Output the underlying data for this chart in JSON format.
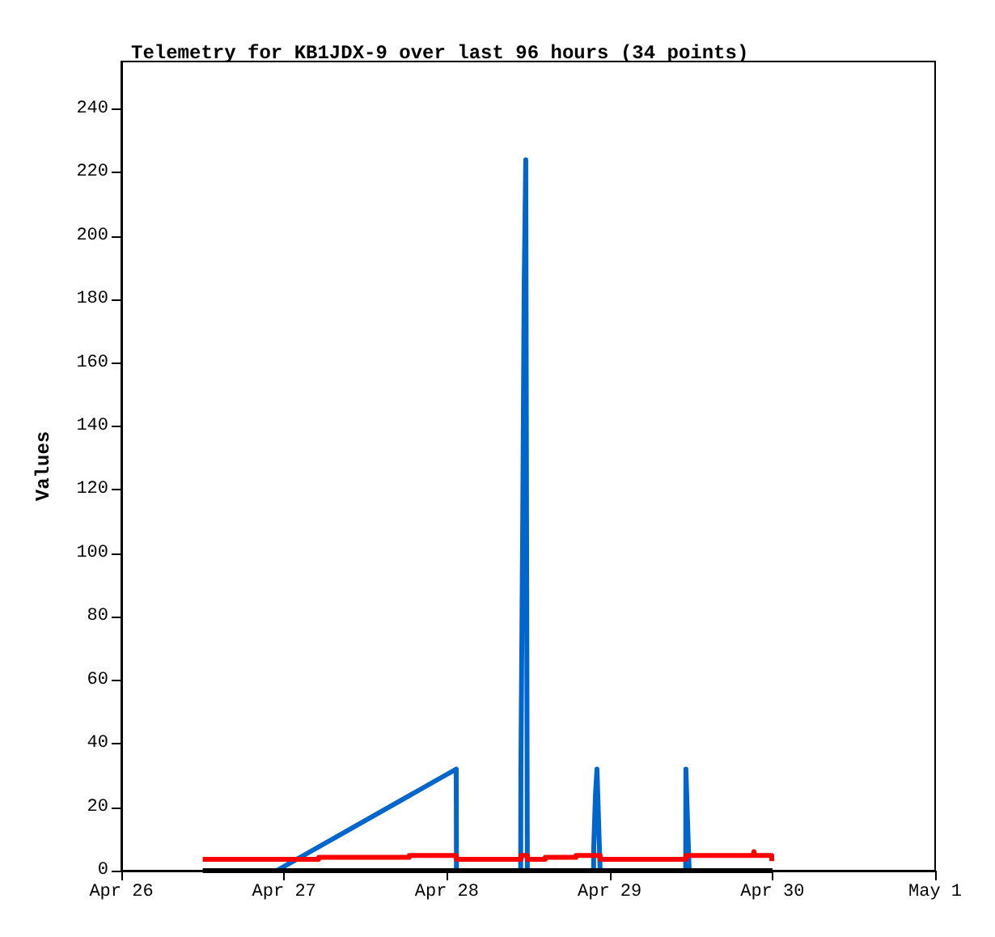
{
  "chart_data": {
    "type": "line",
    "title": "Telemetry for KB1JDX-9 over last 96 hours (34 points)",
    "ylabel": "Values",
    "xlim": [
      "--04-26",
      "--05-01"
    ],
    "xticks": [
      {
        "value": "--04-26",
        "label": "Apr 26"
      },
      {
        "value": "--04-27",
        "label": "Apr 27"
      },
      {
        "value": "--04-28",
        "label": "Apr 28"
      },
      {
        "value": "--04-29",
        "label": "Apr 29"
      },
      {
        "value": "--04-30",
        "label": "Apr 30"
      },
      {
        "value": "--05-01",
        "label": "May 1"
      }
    ],
    "ylim": [
      0,
      255
    ],
    "yticks": [
      0,
      20,
      40,
      60,
      80,
      100,
      120,
      140,
      160,
      180,
      200,
      220,
      240
    ],
    "grid": false,
    "marker": "none",
    "line_style": "solid",
    "series": [
      {
        "color": "#000000",
        "x": [
          "--04-26T12:00",
          "--04-30T00:00"
        ],
        "values": [
          0,
          0
        ]
      },
      {
        "color": "#ff0000",
        "x": [
          "--04-26T12:00",
          "--04-27T05:06",
          "--04-27T05:07",
          "--04-27T18:27",
          "--04-27T18:28",
          "--04-28T01:23",
          "--04-28T01:24",
          "--04-28T10:55",
          "--04-28T10:56",
          "--04-28T11:52",
          "--04-28T11:53",
          "--04-28T14:30",
          "--04-28T14:31",
          "--04-28T19:02",
          "--04-28T19:03",
          "--04-28T22:36",
          "--04-28T22:37",
          "--04-29T11:15",
          "--04-29T11:16",
          "--04-29T21:10",
          "--04-29T21:17",
          "--04-29T21:24",
          "--04-29T23:54",
          "--04-29T23:55",
          "--04-30T00:00"
        ],
        "values": [
          3.6,
          3.6,
          4.2,
          4.2,
          4.8,
          4.8,
          3.6,
          3.6,
          4.8,
          4.8,
          3.6,
          3.6,
          4.2,
          4.2,
          4.8,
          4.8,
          3.6,
          3.6,
          4.8,
          4.8,
          6,
          4.8,
          4.8,
          3,
          3
        ]
      },
      {
        "color": "#0066cc",
        "x": [
          "--04-26T22:54",
          "--04-28T01:23",
          "--04-28T01:25",
          "--04-28T10:53",
          "--04-28T10:55",
          "--04-28T11:10",
          "--04-28T11:24",
          "--04-28T11:38",
          "--04-28T11:52",
          "--04-28T21:38",
          "--04-28T21:40",
          "--04-28T21:55",
          "--04-28T22:08",
          "--04-28T22:22",
          "--04-28T22:36",
          "--04-29T11:13",
          "--04-29T11:15",
          "--04-29T11:29",
          "--04-29T11:44",
          "--04-30T00:00"
        ],
        "values": [
          0,
          32,
          0,
          0,
          32,
          104,
          184,
          224,
          0,
          0,
          8,
          24,
          32,
          16,
          0,
          0,
          32,
          16,
          0,
          0
        ]
      }
    ]
  }
}
